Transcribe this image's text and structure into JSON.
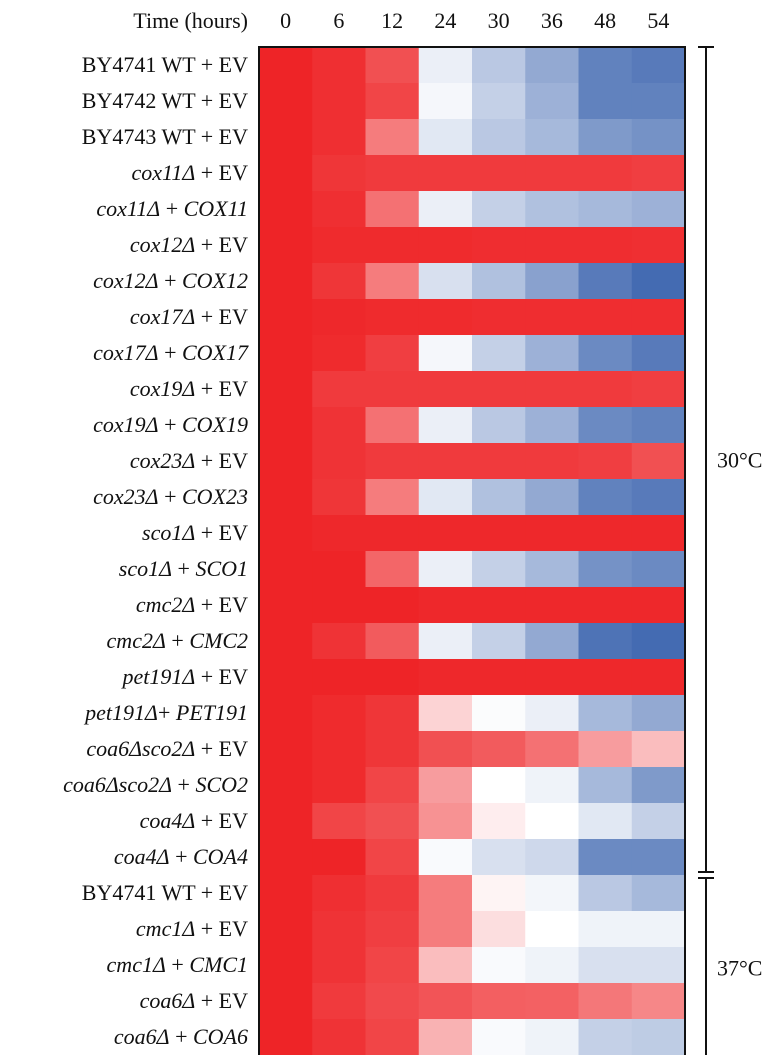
{
  "chart_data": {
    "type": "heatmap",
    "title": "",
    "xlabel": "Time (hours)",
    "ylabel": "",
    "x": [
      "0",
      "6",
      "12",
      "24",
      "30",
      "36",
      "48",
      "54"
    ],
    "colors": {
      "high": "#ee2427",
      "mid": "#ffffff",
      "low": "#3a63ae"
    },
    "value_range": [
      -1,
      1
    ],
    "rows": [
      {
        "label_italic": "",
        "label_tail": "BY4741 WT + EV",
        "values": [
          1.0,
          0.95,
          0.8,
          -0.1,
          -0.35,
          -0.55,
          -0.8,
          -0.85
        ]
      },
      {
        "label_italic": "",
        "label_tail": "BY4742 WT + EV",
        "values": [
          1.0,
          0.95,
          0.85,
          -0.05,
          -0.3,
          -0.5,
          -0.8,
          -0.8
        ]
      },
      {
        "label_italic": "",
        "label_tail": "BY4743 WT + EV",
        "values": [
          1.0,
          0.95,
          0.6,
          -0.15,
          -0.35,
          -0.45,
          -0.65,
          -0.7
        ]
      },
      {
        "label_italic": "cox11Δ",
        "label_tail": " + EV",
        "values": [
          1.0,
          0.92,
          0.9,
          0.9,
          0.9,
          0.9,
          0.9,
          0.88
        ]
      },
      {
        "label_italic": "cox11Δ",
        "label_tail": " + COX11",
        "values": [
          1.0,
          0.95,
          0.65,
          -0.1,
          -0.3,
          -0.4,
          -0.45,
          -0.5
        ]
      },
      {
        "label_italic": "cox12Δ",
        "label_tail": " + EV",
        "values": [
          1.0,
          0.97,
          0.97,
          0.97,
          0.96,
          0.96,
          0.96,
          0.95
        ]
      },
      {
        "label_italic": "cox12Δ",
        "label_tail": " + COX12",
        "values": [
          1.0,
          0.92,
          0.6,
          -0.2,
          -0.4,
          -0.6,
          -0.85,
          -0.95
        ]
      },
      {
        "label_italic": "cox17Δ",
        "label_tail": " + EV",
        "values": [
          1.0,
          0.98,
          0.97,
          0.97,
          0.96,
          0.96,
          0.96,
          0.96
        ]
      },
      {
        "label_italic": "cox17Δ",
        "label_tail": " + COX17",
        "values": [
          1.0,
          0.97,
          0.88,
          -0.05,
          -0.3,
          -0.5,
          -0.75,
          -0.85
        ]
      },
      {
        "label_italic": "cox19Δ",
        "label_tail": " + EV",
        "values": [
          1.0,
          0.9,
          0.9,
          0.9,
          0.9,
          0.9,
          0.9,
          0.88
        ]
      },
      {
        "label_italic": "cox19Δ",
        "label_tail": " + COX19",
        "values": [
          1.0,
          0.93,
          0.65,
          -0.1,
          -0.35,
          -0.5,
          -0.75,
          -0.8
        ]
      },
      {
        "label_italic": "cox23Δ",
        "label_tail": " + EV",
        "values": [
          1.0,
          0.93,
          0.9,
          0.9,
          0.9,
          0.9,
          0.88,
          0.8
        ]
      },
      {
        "label_italic": "cox23Δ",
        "label_tail": " + COX23",
        "values": [
          1.0,
          0.92,
          0.6,
          -0.15,
          -0.4,
          -0.55,
          -0.8,
          -0.85
        ]
      },
      {
        "label_italic": "sco1Δ",
        "label_tail": " + EV",
        "values": [
          1.0,
          0.98,
          0.98,
          0.98,
          0.98,
          0.98,
          0.98,
          0.98
        ]
      },
      {
        "label_italic": "sco1Δ",
        "label_tail": " + SCO1",
        "values": [
          1.0,
          1.0,
          0.7,
          -0.1,
          -0.3,
          -0.45,
          -0.7,
          -0.75
        ]
      },
      {
        "label_italic": "cmc2Δ",
        "label_tail": " + EV",
        "values": [
          1.0,
          1.0,
          1.0,
          0.98,
          0.98,
          0.98,
          0.98,
          0.98
        ]
      },
      {
        "label_italic": "cmc2Δ",
        "label_tail": " + CMC2",
        "values": [
          1.0,
          0.93,
          0.75,
          -0.1,
          -0.3,
          -0.55,
          -0.9,
          -0.95
        ]
      },
      {
        "label_italic": "pet191Δ",
        "label_tail": " + EV",
        "values": [
          1.0,
          1.0,
          1.0,
          0.98,
          0.98,
          0.98,
          0.98,
          0.98
        ]
      },
      {
        "label_italic": "pet191Δ",
        "label_tail": "+ PET191",
        "values": [
          1.0,
          0.97,
          0.92,
          0.2,
          -0.02,
          -0.1,
          -0.45,
          -0.55
        ]
      },
      {
        "label_italic": "coa6Δsco2Δ",
        "label_tail": " + EV",
        "values": [
          1.0,
          0.97,
          0.92,
          0.8,
          0.75,
          0.65,
          0.45,
          0.3
        ]
      },
      {
        "label_italic": "coa6Δsco2Δ",
        "label_tail": "  + SCO2",
        "values": [
          1.0,
          0.97,
          0.85,
          0.45,
          0.0,
          -0.08,
          -0.45,
          -0.65
        ]
      },
      {
        "label_italic": "coa4Δ",
        "label_tail": " + EV",
        "values": [
          1.0,
          0.85,
          0.8,
          0.5,
          0.08,
          0.0,
          -0.15,
          -0.3
        ]
      },
      {
        "label_italic": "coa4Δ",
        "label_tail": "  + COA4",
        "values": [
          1.0,
          1.0,
          0.85,
          -0.03,
          -0.2,
          -0.25,
          -0.75,
          -0.75
        ]
      },
      {
        "label_italic": "",
        "label_tail": "BY4741 WT + EV",
        "values": [
          1.0,
          0.95,
          0.9,
          0.6,
          0.05,
          -0.06,
          -0.35,
          -0.45
        ]
      },
      {
        "label_italic": "cmc1Δ",
        "label_tail": " + EV",
        "values": [
          1.0,
          0.93,
          0.88,
          0.6,
          0.15,
          0.0,
          -0.08,
          -0.08
        ]
      },
      {
        "label_italic": "cmc1Δ",
        "label_tail": "  + CMC1",
        "values": [
          1.0,
          0.93,
          0.85,
          0.3,
          -0.03,
          -0.08,
          -0.2,
          -0.2
        ]
      },
      {
        "label_italic": "coa6Δ",
        "label_tail": " + EV",
        "values": [
          1.0,
          0.9,
          0.83,
          0.78,
          0.73,
          0.72,
          0.62,
          0.55
        ]
      },
      {
        "label_italic": "coa6Δ",
        "label_tail": "  + COA6",
        "values": [
          1.0,
          0.93,
          0.85,
          0.35,
          -0.03,
          -0.08,
          -0.3,
          -0.33
        ]
      }
    ],
    "groups": [
      {
        "label": "30°C",
        "from_row": 0,
        "to_row": 22
      },
      {
        "label": "37°C",
        "from_row": 23,
        "to_row": 27
      }
    ],
    "grid": false,
    "legend": "none"
  }
}
